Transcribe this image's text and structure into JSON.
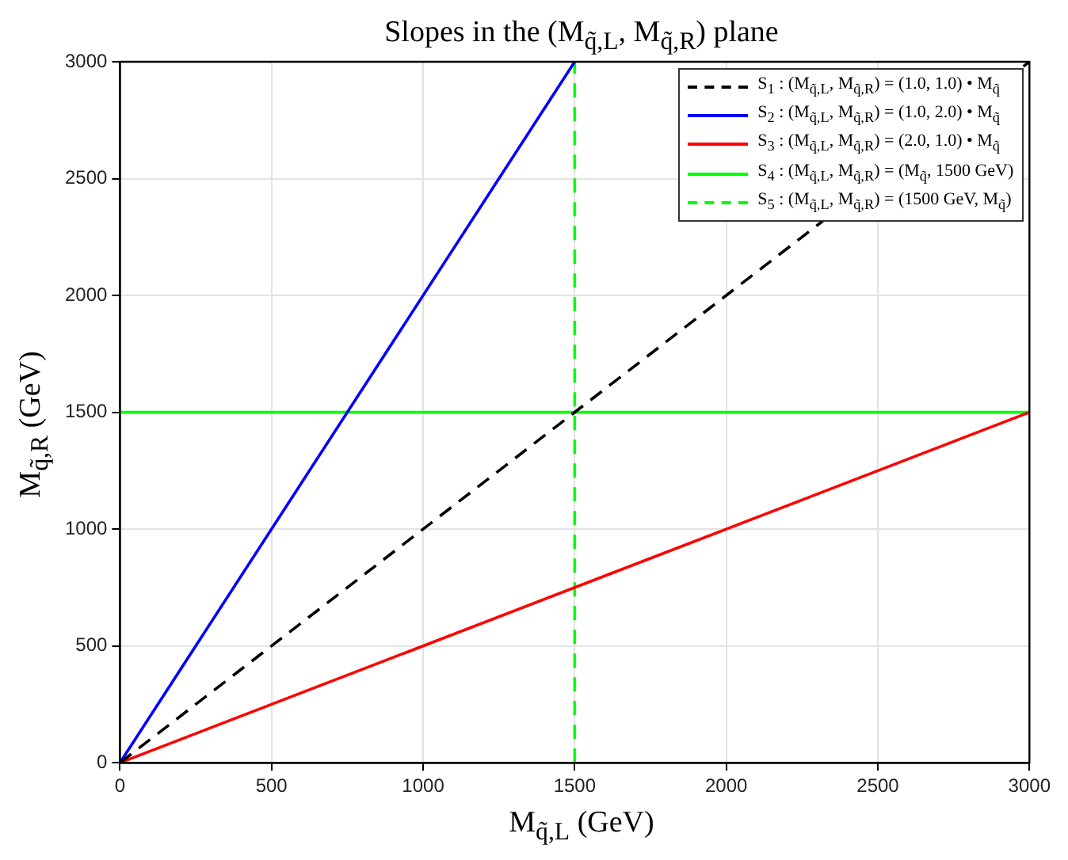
{
  "chart_data": {
    "type": "line",
    "title": "Slopes in the (M$_{q̃,L}$, M$_{q̃,R}$) plane",
    "xlabel": "M$_{q̃,L}$ (GeV)",
    "ylabel": "M$_{q̃,R}$ (GeV)",
    "xlim": [
      0,
      3000
    ],
    "xticks": [
      0,
      500,
      1000,
      1500,
      2000,
      2500,
      3000
    ],
    "ylim": [
      0,
      3000
    ],
    "yticks": [
      0,
      500,
      1000,
      1500,
      2000,
      2500,
      3000
    ],
    "grid": true,
    "legend": "top right",
    "marker": "none",
    "series": [
      {
        "name": "S$_{1}$ : (M$_{q̃,L}$, M$_{q̃,R}$) = (1.0, 1.0) • M$_{q̃}$",
        "color": "#000000",
        "line_style": "dashed",
        "x": [
          0,
          3000
        ],
        "values": [
          0,
          3000
        ]
      },
      {
        "name": "S$_{2}$ : (M$_{q̃,L}$, M$_{q̃,R}$) = (1.0, 2.0) • M$_{q̃}$",
        "color": "#0000ff",
        "line_style": "solid",
        "x": [
          0,
          1500
        ],
        "values": [
          0,
          3000
        ]
      },
      {
        "name": "S$_{3}$ : (M$_{q̃,L}$, M$_{q̃,R}$) = (2.0, 1.0) • M$_{q̃}$",
        "color": "#ff0000",
        "line_style": "solid",
        "x": [
          0,
          3000
        ],
        "values": [
          0,
          1500
        ]
      },
      {
        "name": "S$_{4}$ : (M$_{q̃,L}$, M$_{q̃,R}$) = (M$_{q̃}$, 1500 GeV)",
        "color": "#00ff00",
        "line_style": "solid",
        "x": [
          0,
          3000
        ],
        "values": [
          1500,
          1500
        ]
      },
      {
        "name": "S$_{5}$ : (M$_{q̃,L}$, M$_{q̃,R}$) = (1500 GeV, M$_{q̃}$)",
        "color": "#00ff00",
        "line_style": "dashed",
        "x": [
          1500,
          1500
        ],
        "values": [
          0,
          3000
        ]
      }
    ]
  }
}
